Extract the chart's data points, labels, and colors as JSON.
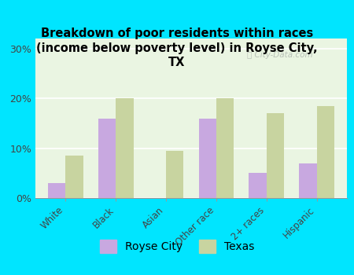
{
  "title": "Breakdown of poor residents within races\n(income below poverty level) in Royse City,\nTX",
  "categories": [
    "White",
    "Black",
    "Asian",
    "Other race",
    "2+ races",
    "Hispanic"
  ],
  "royse_city": [
    3,
    16,
    0,
    16,
    5,
    7
  ],
  "texas": [
    8.5,
    20,
    9.5,
    20,
    17,
    18.5
  ],
  "royse_city_color": "#c8a8e0",
  "texas_color": "#c8d4a0",
  "background_outer": "#00e5ff",
  "background_inner": "#eaf5e2",
  "ylim": [
    0,
    32
  ],
  "yticks": [
    0,
    10,
    20,
    30
  ],
  "ytick_labels": [
    "0%",
    "10%",
    "20%",
    "30%"
  ],
  "legend_royse": "Royse City",
  "legend_texas": "Texas",
  "title_fontsize": 10.5,
  "bar_width": 0.35
}
